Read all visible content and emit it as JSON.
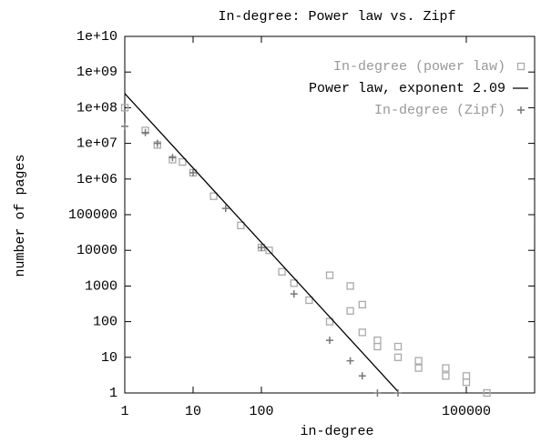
{
  "chart_data": {
    "type": "scatter",
    "title": "In-degree: Power law vs. Zipf",
    "x_label": "in-degree",
    "y_label": "number of pages",
    "log_x": true,
    "log_y": true,
    "xlim": [
      1,
      1000000
    ],
    "ylim": [
      1,
      10000000000
    ],
    "xticks": [
      1,
      10,
      100,
      100000
    ],
    "yticks": [
      1,
      10,
      100,
      1000,
      10000,
      100000,
      {
        "value": 1000000,
        "label": "1e+06"
      },
      {
        "value": 10000000,
        "label": "1e+07"
      },
      {
        "value": 100000000,
        "label": "1e+08"
      },
      {
        "value": 1000000000,
        "label": "1e+09"
      },
      {
        "value": 10000000000,
        "label": "1e+10"
      }
    ],
    "legend": "top-right",
    "series": [
      {
        "name": "In-degree (power law)",
        "color": "#aaaaaa",
        "marker": "square",
        "x": [
          1,
          2,
          3,
          5,
          7,
          10,
          20,
          50,
          100,
          130,
          200,
          300,
          500,
          1000,
          1000,
          2000,
          2000,
          3000,
          3000,
          5000,
          5000,
          10000,
          10000,
          20000,
          20000,
          50000,
          50000,
          100000,
          100000,
          200000
        ],
        "values": [
          100000000,
          23000000,
          9000000,
          3500000,
          3000000,
          1500000,
          330000,
          50000,
          12000,
          10000,
          2500,
          1200,
          400,
          100,
          2000,
          200,
          1000,
          50,
          300,
          30,
          20,
          10,
          20,
          5,
          8,
          3,
          5,
          2,
          3,
          1
        ]
      },
      {
        "name": "Power law, exponent 2.09",
        "color": "#000000",
        "marker": "line",
        "x": [
          1,
          10000
        ],
        "values": [
          250000000,
          1.1
        ]
      },
      {
        "name": "In-degree (Zipf)",
        "color": "#777777",
        "marker": "plus",
        "x": [
          1,
          2,
          3,
          5,
          10,
          30,
          100,
          300,
          1000,
          2000,
          3000,
          5000,
          10000
        ],
        "values": [
          30000000,
          20000000,
          10000000,
          4000000,
          1500000,
          150000,
          12000,
          600,
          30,
          8,
          3,
          1,
          1
        ]
      }
    ]
  }
}
